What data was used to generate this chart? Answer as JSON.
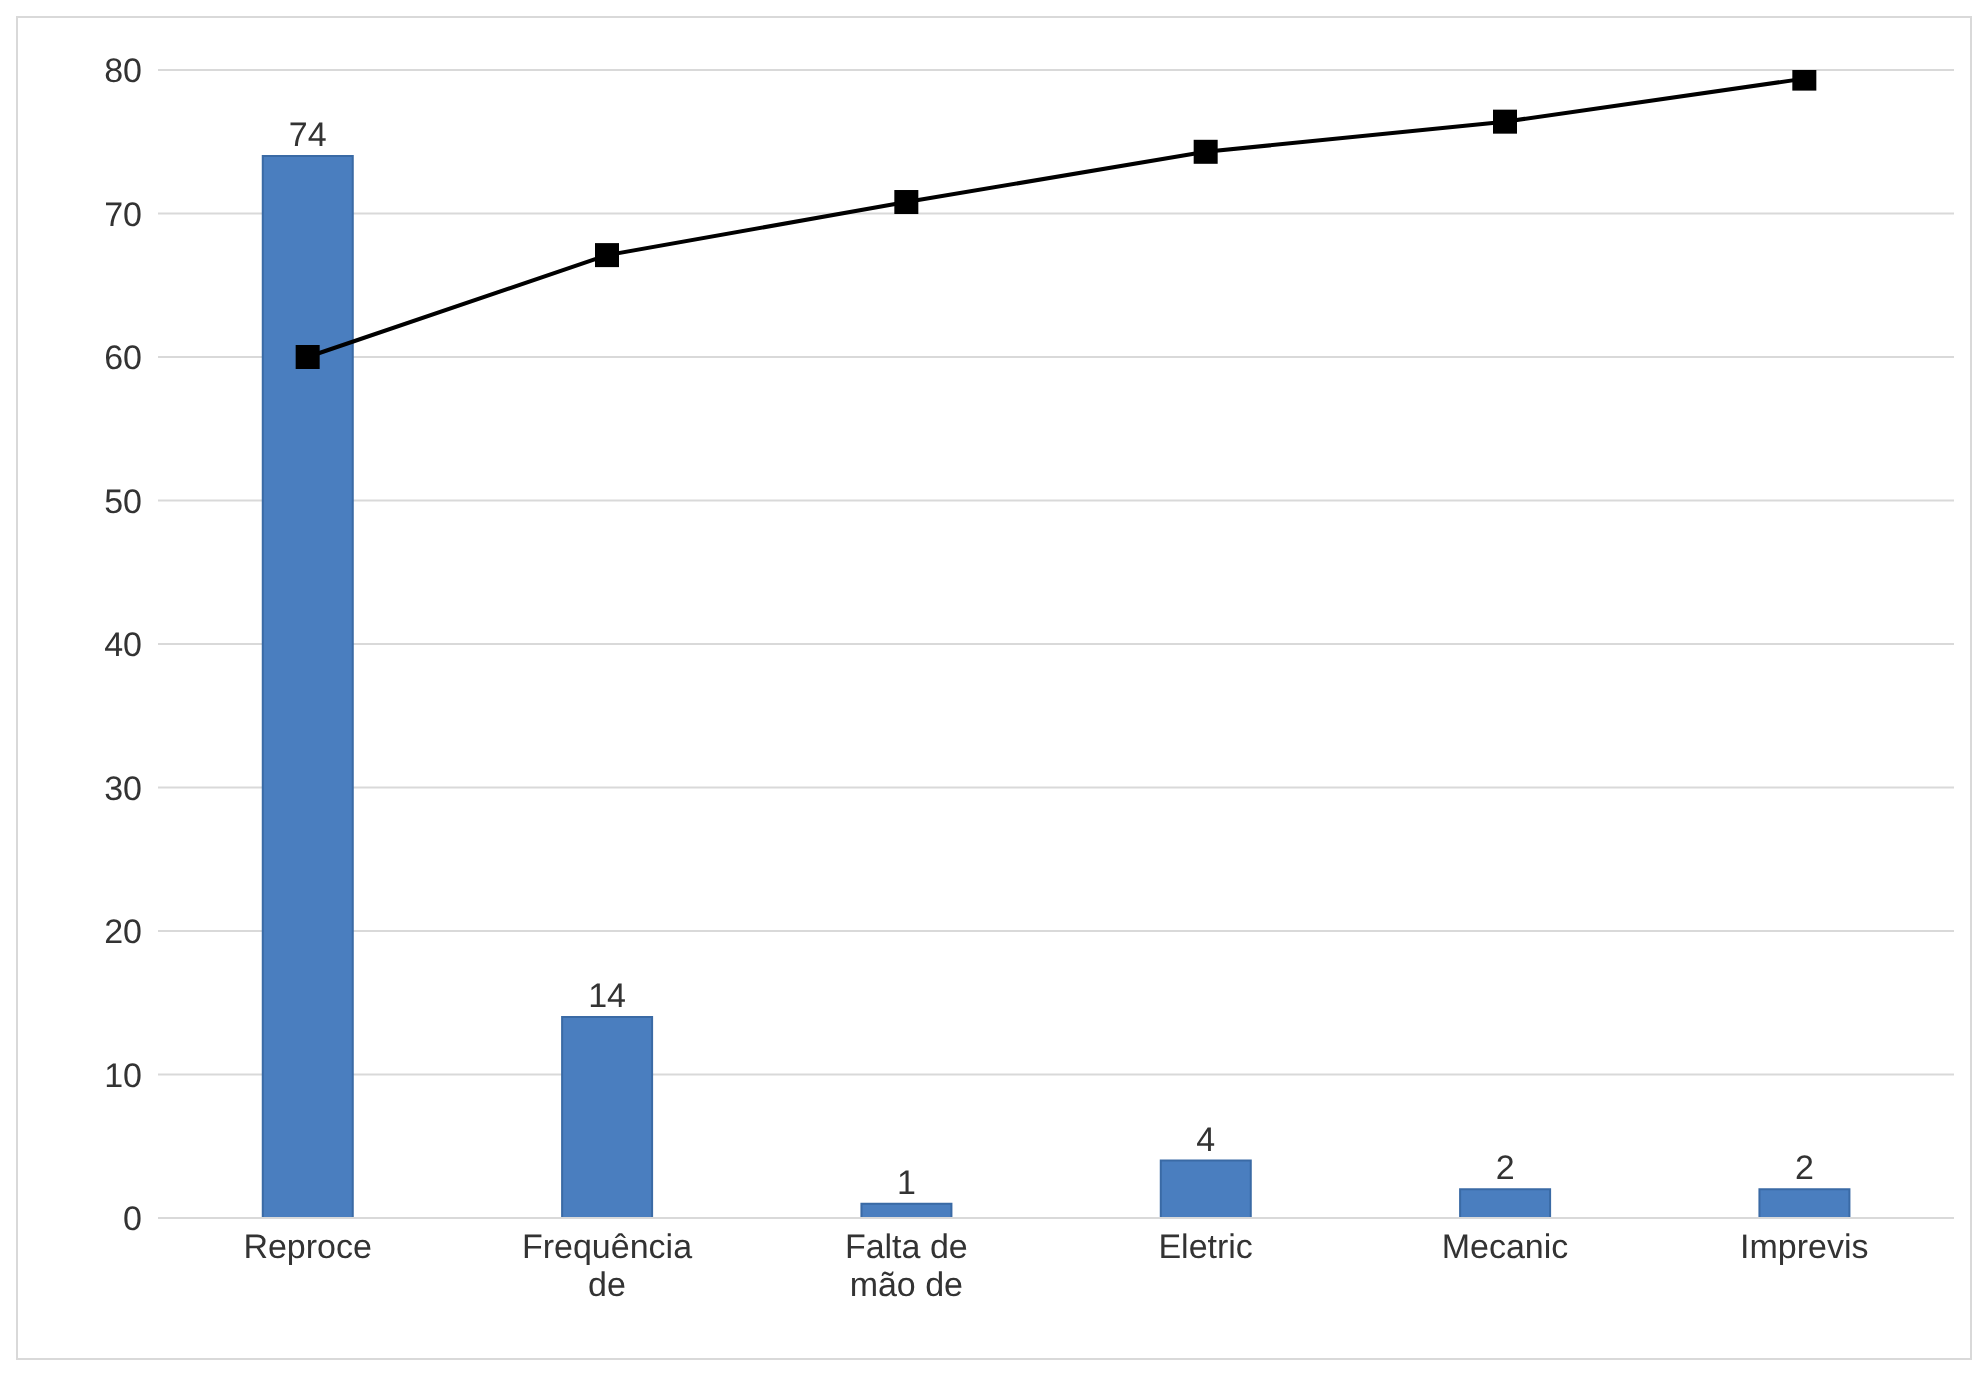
{
  "chart_data": {
    "type": "bar",
    "categories": [
      "Reproce",
      "Frequência de",
      "Falta de mão de",
      "Eletric",
      "Mecanic",
      "Imprevis"
    ],
    "series": [
      {
        "color": "#4a7ebf",
        "values": [
          74,
          14,
          1,
          4,
          2,
          2
        ],
        "value_labels": [
          "74",
          "14",
          "1",
          "4",
          "2",
          "2"
        ]
      },
      {
        "type": "line",
        "color": "#000000",
        "values": [
          60,
          67.1,
          70.8,
          74.3,
          76.4,
          79.4
        ],
        "marker": "square",
        "line_style": "solid"
      }
    ],
    "ylim": [
      0,
      80
    ],
    "yticks": [
      0,
      10,
      20,
      30,
      40,
      50,
      60,
      70,
      80
    ],
    "grid": "y",
    "legend": false
  }
}
